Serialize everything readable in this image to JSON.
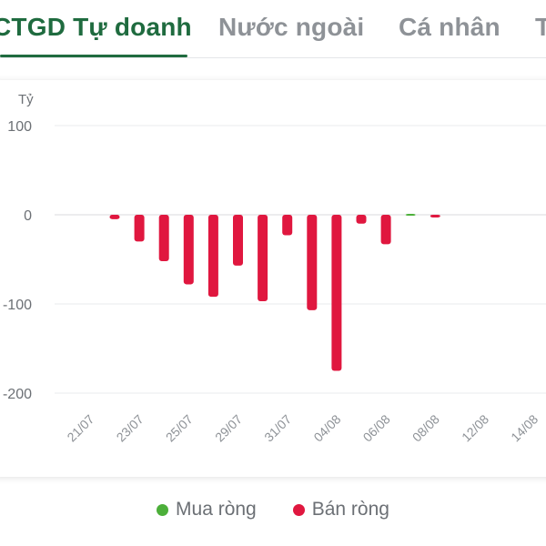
{
  "tabs": [
    {
      "label": "CTGD Tự doanh",
      "active": true
    },
    {
      "label": "Nước ngoài",
      "active": false
    },
    {
      "label": "Cá nhân",
      "active": false
    },
    {
      "label": "T",
      "active": false
    }
  ],
  "colors": {
    "buy": "#4caf3a",
    "sell": "#e0173f",
    "active_tab": "#1f6b3f"
  },
  "legend": {
    "buy_label": "Mua ròng",
    "sell_label": "Bán ròng"
  },
  "chart_data": {
    "type": "bar",
    "ylabel": "Tỷ",
    "yticks": [
      100,
      0,
      -100,
      -200
    ],
    "ylim": [
      -200,
      100
    ],
    "xticks": [
      "21/07",
      "23/07",
      "25/07",
      "29/07",
      "31/07",
      "04/08",
      "06/08",
      "08/08",
      "12/08",
      "14/08"
    ],
    "bars": [
      {
        "value": -5,
        "series": "sell"
      },
      {
        "value": -30,
        "series": "sell"
      },
      {
        "value": -52,
        "series": "sell"
      },
      {
        "value": -78,
        "series": "sell"
      },
      {
        "value": -92,
        "series": "sell"
      },
      {
        "value": -57,
        "series": "sell"
      },
      {
        "value": -97,
        "series": "sell"
      },
      {
        "value": -23,
        "series": "sell"
      },
      {
        "value": -107,
        "series": "sell"
      },
      {
        "value": -175,
        "series": "sell"
      },
      {
        "value": -10,
        "series": "sell"
      },
      {
        "value": -33,
        "series": "sell"
      },
      {
        "value": 1,
        "series": "buy"
      },
      {
        "value": -3,
        "series": "sell"
      }
    ],
    "grid": true,
    "legend_position": "bottom"
  }
}
